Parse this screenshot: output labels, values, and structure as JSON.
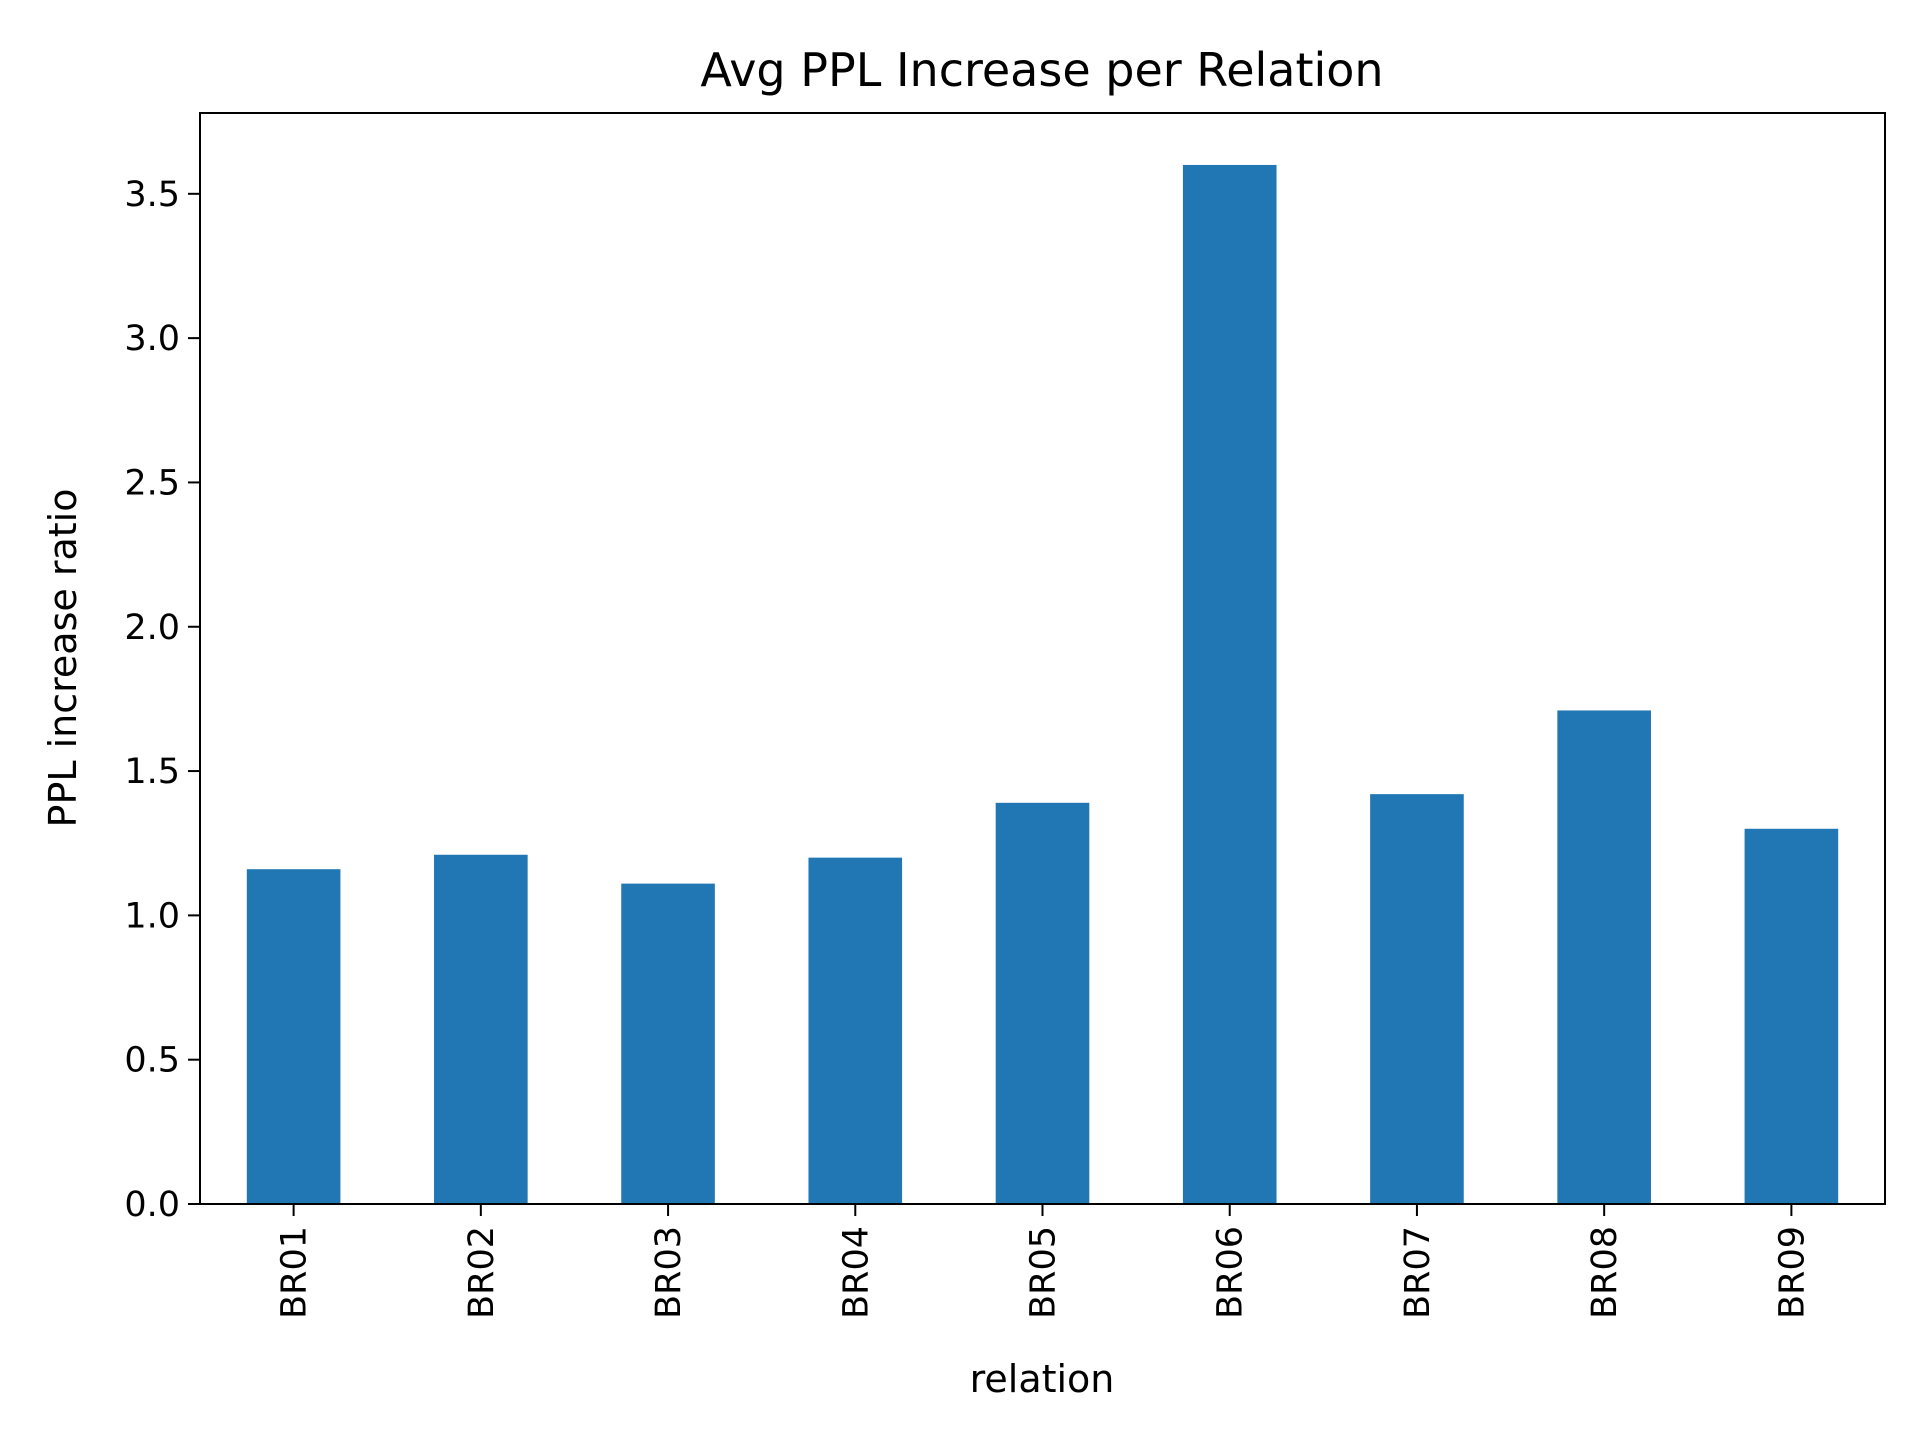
{
  "chart_data": {
    "type": "bar",
    "title": "Avg PPL Increase per Relation",
    "xlabel": "relation",
    "ylabel": "PPL increase ratio",
    "categories": [
      "BR01",
      "BR02",
      "BR03",
      "BR04",
      "BR05",
      "BR06",
      "BR07",
      "BR08",
      "BR09"
    ],
    "values": [
      1.16,
      1.21,
      1.11,
      1.2,
      1.39,
      3.6,
      1.42,
      1.71,
      1.3
    ],
    "ylim": [
      0,
      3.78
    ],
    "yticks": [
      "0.0",
      "0.5",
      "1.0",
      "1.5",
      "2.0",
      "2.5",
      "3.0",
      "3.5"
    ],
    "bar_color": "#2077b4",
    "grid": false,
    "legend": "none"
  }
}
